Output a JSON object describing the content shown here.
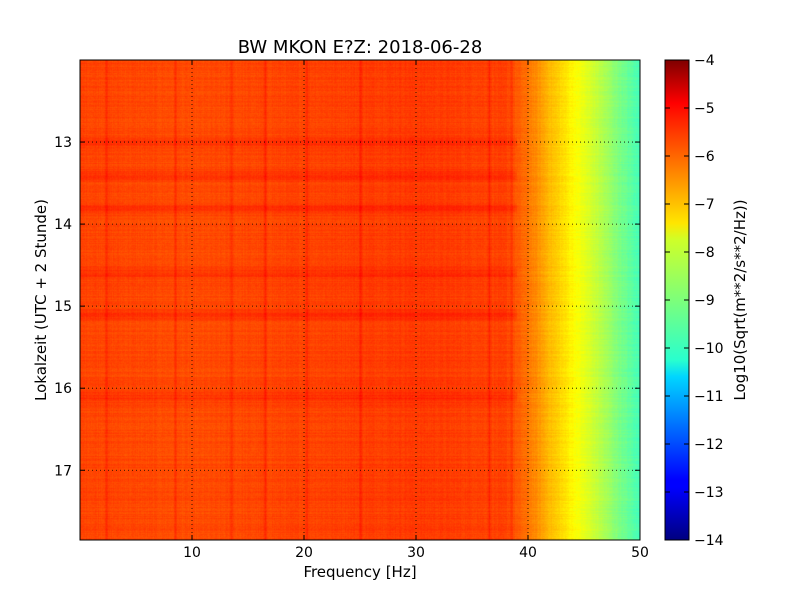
{
  "chart_data": {
    "type": "heatmap",
    "title": "BW MKON E?Z: 2018-06-28",
    "xlabel": "Frequency [Hz]",
    "ylabel": "Lokalzeit (UTC + 2 Stunde)",
    "xlim": [
      0,
      50
    ],
    "ylim": [
      17.85,
      12.0
    ],
    "y_axis_inverted": true,
    "x_ticks": [
      10,
      20,
      30,
      40,
      50
    ],
    "x_tick_labels": [
      "10",
      "20",
      "30",
      "40",
      "50"
    ],
    "y_ticks": [
      13,
      14,
      15,
      16,
      17
    ],
    "y_tick_labels": [
      "13",
      "14",
      "15",
      "16",
      "17"
    ],
    "grid": true,
    "colormap": "jet",
    "colorbar": {
      "label": "Log10(Sqrt(m**2/s**2/Hz))",
      "range": [
        -14,
        -4
      ],
      "ticks": [
        -4,
        -5,
        -6,
        -7,
        -8,
        -9,
        -10,
        -11,
        -12,
        -13,
        -14
      ],
      "tick_labels": [
        "−4",
        "−5",
        "−6",
        "−7",
        "−8",
        "−9",
        "−10",
        "−11",
        "−12",
        "−13",
        "−14"
      ]
    },
    "value_profile_vs_frequency": {
      "frequency_hz": [
        0,
        10,
        20,
        30,
        38,
        40,
        42,
        44,
        46,
        48,
        50
      ],
      "log_amplitude": [
        -5.9,
        -6.0,
        -5.9,
        -5.8,
        -5.9,
        -6.4,
        -7.1,
        -7.7,
        -8.3,
        -9.0,
        -9.6
      ]
    },
    "features": {
      "vertical_lines_hz": [
        2.3,
        8.5,
        13.5,
        16.5,
        20.2,
        25.0,
        36.5,
        38.5
      ],
      "stronger_time_bands_h": [
        13.0,
        13.4,
        13.8,
        14.6,
        15.1,
        16.1
      ]
    }
  }
}
